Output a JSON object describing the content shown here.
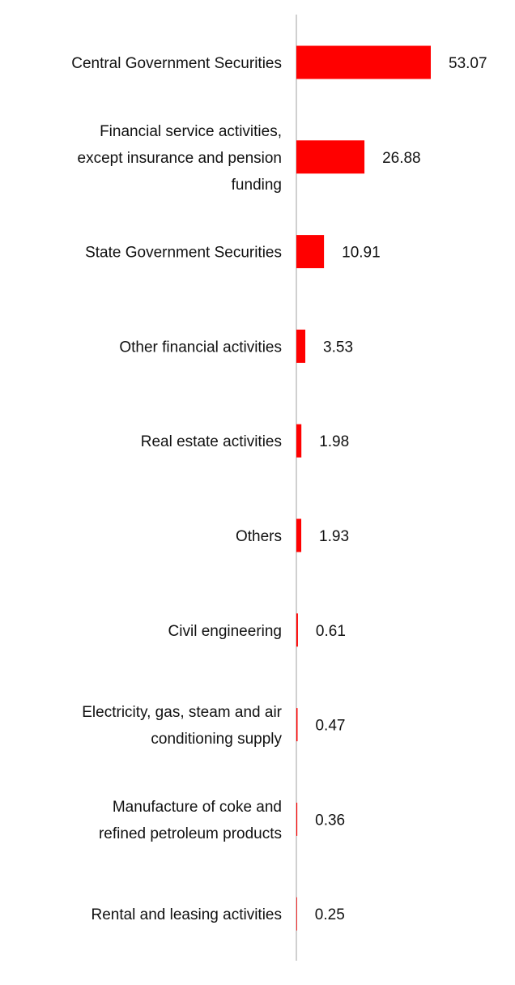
{
  "chart_data": {
    "type": "bar",
    "orientation": "horizontal",
    "title": "",
    "xlabel": "",
    "ylabel": "",
    "grid": false,
    "legend": "none",
    "bar_color": "#ff0000",
    "axis_color": "#d0d0d0",
    "xlim": [
      0,
      53.07
    ],
    "categories": [
      "Central Government Securities",
      "Financial service activities, except insurance and pension funding",
      "State Government Securities",
      "Other financial activities",
      "Real estate activities",
      "Others",
      "Civil engineering",
      "Electricity, gas, steam and air conditioning supply",
      "Manufacture of coke and refined petroleum products",
      "Rental and leasing activities"
    ],
    "category_lines": [
      [
        "Central Government Securities"
      ],
      [
        "Financial service activities,",
        "except insurance and pension",
        "funding"
      ],
      [
        "State Government Securities"
      ],
      [
        "Other financial activities"
      ],
      [
        "Real estate activities"
      ],
      [
        "Others"
      ],
      [
        "Civil engineering"
      ],
      [
        "Electricity, gas, steam and air",
        "conditioning supply"
      ],
      [
        "Manufacture of coke and",
        "refined petroleum products"
      ],
      [
        "Rental and leasing activities"
      ]
    ],
    "values": [
      53.07,
      26.88,
      10.91,
      3.53,
      1.98,
      1.93,
      0.61,
      0.47,
      0.36,
      0.25
    ],
    "value_labels": [
      "53.07",
      "26.88",
      "10.91",
      "3.53",
      "1.98",
      "1.93",
      "0.61",
      "0.47",
      "0.36",
      "0.25"
    ]
  }
}
